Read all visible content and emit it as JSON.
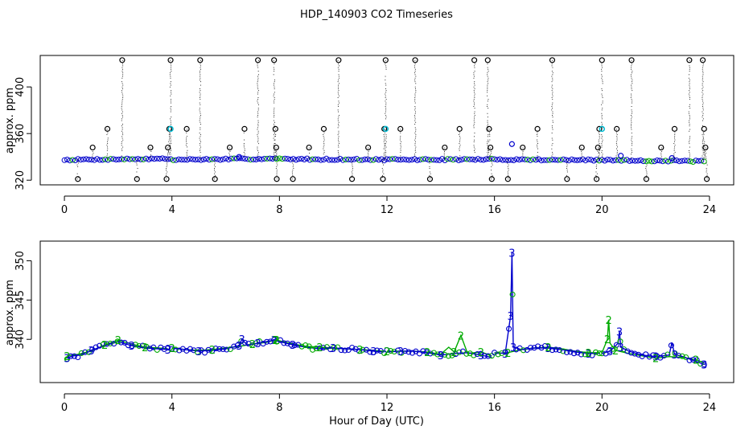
{
  "chart_data": {
    "title": "HDP_140903  CO2 Timeseries",
    "xlabel": "Hour of Day (UTC)",
    "x_ticks": [
      0,
      4,
      8,
      12,
      16,
      20,
      24
    ],
    "colors": {
      "raw": "#000000",
      "flagged": "#00bcd4",
      "series1": "#0000cc",
      "series2": "#00aa00"
    },
    "panels": [
      {
        "type": "scatter",
        "ylabel": "approx. ppm",
        "xlim": [
          -0.9,
          24.9
        ],
        "ylim": [
          316,
          427
        ],
        "y_ticks": [
          320,
          360,
          400
        ],
        "baseline_segments": [
          {
            "x0": 0.0,
            "x1": 3.85,
            "y0": 337.5,
            "y1": 338.5
          },
          {
            "x0": 3.95,
            "x1": 7.85,
            "y0": 337.5,
            "y1": 338.5
          },
          {
            "x0": 7.9,
            "x1": 11.9,
            "y0": 338.2,
            "y1": 337.6
          },
          {
            "x0": 12.0,
            "x1": 15.9,
            "y0": 337.6,
            "y1": 337.8
          },
          {
            "x0": 16.0,
            "x1": 19.9,
            "y0": 337.8,
            "y1": 337.2
          },
          {
            "x0": 20.0,
            "x1": 23.8,
            "y0": 337.2,
            "y1": 336.2
          }
        ],
        "outliers": [
          {
            "x": 0.5,
            "y": 321
          },
          {
            "x": 1.05,
            "y": 348
          },
          {
            "x": 1.6,
            "y": 364
          },
          {
            "x": 2.15,
            "y": 423
          },
          {
            "x": 2.7,
            "y": 321
          },
          {
            "x": 3.2,
            "y": 348
          },
          {
            "x": 3.8,
            "y": 321
          },
          {
            "x": 3.85,
            "y": 348
          },
          {
            "x": 3.9,
            "y": 364
          },
          {
            "x": 3.95,
            "y": 423
          },
          {
            "x": 4.55,
            "y": 364
          },
          {
            "x": 5.05,
            "y": 423
          },
          {
            "x": 5.6,
            "y": 321
          },
          {
            "x": 6.15,
            "y": 348
          },
          {
            "x": 6.7,
            "y": 364
          },
          {
            "x": 7.2,
            "y": 423
          },
          {
            "x": 7.8,
            "y": 423
          },
          {
            "x": 7.85,
            "y": 364
          },
          {
            "x": 7.88,
            "y": 348
          },
          {
            "x": 7.9,
            "y": 321
          },
          {
            "x": 8.5,
            "y": 321
          },
          {
            "x": 9.1,
            "y": 348
          },
          {
            "x": 9.65,
            "y": 364
          },
          {
            "x": 10.2,
            "y": 423
          },
          {
            "x": 10.7,
            "y": 321
          },
          {
            "x": 11.3,
            "y": 348
          },
          {
            "x": 11.85,
            "y": 321
          },
          {
            "x": 11.9,
            "y": 364
          },
          {
            "x": 11.95,
            "y": 423
          },
          {
            "x": 12.5,
            "y": 364
          },
          {
            "x": 13.05,
            "y": 423
          },
          {
            "x": 13.6,
            "y": 321
          },
          {
            "x": 14.15,
            "y": 348
          },
          {
            "x": 14.7,
            "y": 364
          },
          {
            "x": 15.25,
            "y": 423
          },
          {
            "x": 15.75,
            "y": 423
          },
          {
            "x": 15.8,
            "y": 364
          },
          {
            "x": 15.85,
            "y": 348
          },
          {
            "x": 15.9,
            "y": 321
          },
          {
            "x": 16.5,
            "y": 321
          },
          {
            "x": 17.05,
            "y": 348
          },
          {
            "x": 17.6,
            "y": 364
          },
          {
            "x": 18.15,
            "y": 423
          },
          {
            "x": 18.7,
            "y": 321
          },
          {
            "x": 19.25,
            "y": 348
          },
          {
            "x": 19.8,
            "y": 321
          },
          {
            "x": 19.85,
            "y": 348
          },
          {
            "x": 19.9,
            "y": 364
          },
          {
            "x": 20.0,
            "y": 423
          },
          {
            "x": 20.55,
            "y": 364
          },
          {
            "x": 21.1,
            "y": 423
          },
          {
            "x": 21.65,
            "y": 321
          },
          {
            "x": 22.2,
            "y": 348
          },
          {
            "x": 22.7,
            "y": 364
          },
          {
            "x": 23.25,
            "y": 423
          },
          {
            "x": 23.75,
            "y": 423
          },
          {
            "x": 23.8,
            "y": 364
          },
          {
            "x": 23.85,
            "y": 348
          },
          {
            "x": 23.9,
            "y": 321
          }
        ],
        "flagged_points": [
          {
            "x": 3.95,
            "y": 364
          },
          {
            "x": 11.95,
            "y": 364
          },
          {
            "x": 20.0,
            "y": 364
          }
        ],
        "excursions": [
          {
            "x": 16.65,
            "y": 351
          },
          {
            "x": 20.7,
            "y": 341
          },
          {
            "x": 22.6,
            "y": 339
          },
          {
            "x": 6.5,
            "y": 340
          }
        ]
      },
      {
        "type": "line",
        "ylabel": "approx. ppm",
        "xlim": [
          -0.9,
          24.9
        ],
        "ylim": [
          334.5,
          352.5
        ],
        "y_ticks": [
          340,
          345,
          350
        ],
        "series": [
          {
            "marker": "3",
            "x": [
              0.1,
              0.3,
              0.6,
              1.0,
              1.5,
              2.0,
              2.5,
              3.0,
              3.5,
              3.85,
              4.0,
              4.5,
              5.0,
              5.5,
              6.0,
              6.5,
              6.6,
              6.8,
              7.2,
              7.8,
              7.9,
              8.5,
              9.0,
              9.5,
              10.0,
              10.5,
              11.0,
              11.5,
              11.9,
              12.0,
              12.5,
              13.0,
              13.5,
              14.0,
              14.5,
              15.0,
              15.5,
              15.9,
              16.0,
              16.4,
              16.6,
              16.65,
              16.7,
              17.0,
              17.5,
              18.0,
              18.5,
              19.0,
              19.5,
              19.9,
              20.0,
              20.3,
              20.6,
              20.65,
              20.7,
              21.0,
              21.5,
              22.0,
              22.5,
              22.6,
              22.7,
              23.0,
              23.5,
              23.8
            ],
            "y": [
              337.6,
              337.9,
              338.0,
              338.6,
              339.2,
              339.7,
              339.2,
              338.9,
              338.8,
              338.7,
              338.9,
              338.7,
              338.5,
              338.6,
              338.8,
              339.2,
              340.0,
              339.3,
              339.5,
              339.9,
              339.8,
              339.3,
              339.0,
              338.8,
              338.9,
              338.8,
              338.7,
              338.5,
              338.4,
              338.4,
              338.5,
              338.5,
              338.3,
              338.0,
              338.2,
              338.3,
              338.0,
              337.7,
              338.3,
              338.2,
              343.0,
              351.0,
              339.0,
              338.7,
              338.9,
              338.9,
              338.7,
              338.4,
              338.2,
              338.2,
              338.2,
              338.5,
              339.5,
              341.0,
              339.0,
              338.5,
              338.0,
              337.8,
              338.0,
              339.6,
              338.1,
              337.8,
              337.2,
              336.8
            ]
          },
          {
            "marker": "2",
            "x": [
              0.1,
              0.5,
              1.0,
              1.5,
              2.0,
              2.5,
              3.0,
              3.5,
              3.85,
              4.0,
              4.5,
              5.0,
              5.5,
              6.0,
              6.5,
              7.0,
              7.5,
              7.85,
              7.9,
              8.5,
              9.0,
              9.5,
              10.0,
              10.5,
              11.0,
              11.5,
              11.9,
              12.0,
              12.5,
              13.0,
              13.5,
              14.0,
              14.3,
              14.5,
              14.75,
              15.0,
              15.5,
              15.9,
              16.0,
              16.5,
              17.0,
              17.5,
              18.0,
              18.5,
              19.0,
              19.5,
              19.9,
              20.0,
              20.2,
              20.25,
              20.3,
              20.5,
              21.0,
              21.5,
              22.0,
              22.5,
              23.0,
              23.5,
              23.8
            ],
            "y": [
              337.9,
              338.1,
              338.5,
              339.3,
              339.9,
              339.4,
              339.0,
              338.9,
              338.8,
              338.9,
              338.7,
              338.6,
              338.7,
              338.9,
              339.1,
              339.4,
              339.6,
              339.9,
              339.9,
              339.4,
              339.1,
              339.0,
              338.9,
              338.8,
              338.7,
              338.6,
              338.5,
              338.5,
              338.5,
              338.5,
              338.4,
              338.1,
              339.0,
              338.4,
              340.5,
              338.2,
              338.4,
              337.9,
              338.2,
              338.3,
              338.7,
              338.9,
              339.0,
              338.8,
              338.5,
              338.3,
              338.3,
              338.3,
              340.0,
              342.5,
              339.5,
              338.6,
              338.2,
              337.9,
              337.6,
              337.8,
              337.7,
              337.4,
              337.0
            ]
          }
        ]
      }
    ]
  }
}
